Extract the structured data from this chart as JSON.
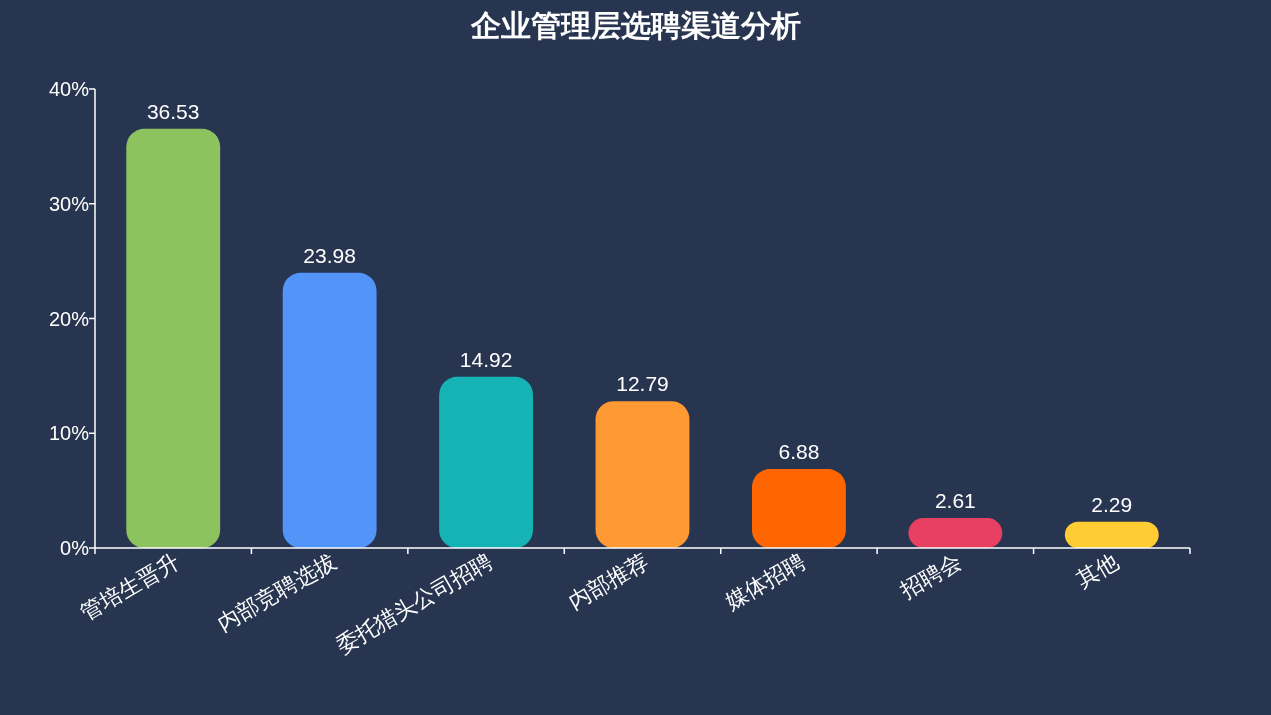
{
  "chart_data": {
    "type": "bar",
    "title": "企业管理层选聘渠道分析",
    "categories": [
      "管培生晋升",
      "内部竞聘选拔",
      "委托猎头公司招聘",
      "内部推荐",
      "媒体招聘",
      "招聘会",
      "其他"
    ],
    "values": [
      36.53,
      23.98,
      14.92,
      12.79,
      6.88,
      2.61,
      2.29
    ],
    "colors": [
      "#8dc35f",
      "#5294f8",
      "#16b3b5",
      "#ff9933",
      "#ff6600",
      "#e84062",
      "#ffcc33"
    ],
    "ylim": [
      0,
      40
    ],
    "yticks": [
      {
        "value": 0,
        "label": "0%"
      },
      {
        "value": 10,
        "label": "10%"
      },
      {
        "value": 20,
        "label": "20%"
      },
      {
        "value": 30,
        "label": "30%"
      },
      {
        "value": 40,
        "label": "40%"
      }
    ],
    "data_labels": true
  }
}
